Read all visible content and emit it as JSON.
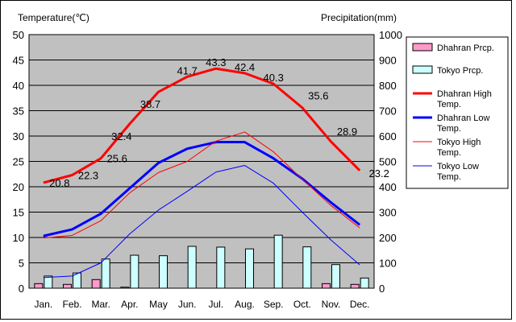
{
  "chart_data": {
    "type": "bar+line",
    "left_axis": {
      "title": "Temperature(℃)",
      "min": 0,
      "max": 50,
      "step": 5
    },
    "right_axis": {
      "title": "Precipitation(mm)",
      "min": 0,
      "max": 1000,
      "step": 100
    },
    "categories": [
      "Jan.",
      "Feb.",
      "Mar.",
      "Apr.",
      "May",
      "Jun.",
      "Jul.",
      "Aug.",
      "Sep.",
      "Oct.",
      "Nov.",
      "Dec."
    ],
    "grid": true,
    "legend_position": "right",
    "bar_series": [
      {
        "name": "Dhahran Prcp.",
        "color": "#ff99cc",
        "values": [
          18,
          15,
          34,
          4,
          0,
          0,
          0,
          0,
          0,
          0,
          18,
          15
        ]
      },
      {
        "name": "Tokyo Prcp.",
        "color": "#ccffff",
        "values": [
          48,
          60,
          115,
          130,
          128,
          165,
          162,
          155,
          209,
          163,
          93,
          40
        ]
      }
    ],
    "line_series": [
      {
        "name": "Dhahran High Temp.",
        "color": "#ff0000",
        "width": 3,
        "values": [
          20.8,
          22.3,
          25.6,
          32.4,
          38.7,
          41.7,
          43.3,
          42.4,
          40.3,
          35.6,
          28.9,
          23.2
        ],
        "labels": [
          "20.8",
          "22.3",
          "25.6",
          "32.4",
          "38.7",
          "41.7",
          "43.3",
          "42.4",
          "40.3",
          "35.6",
          "28.9",
          "23.2"
        ]
      },
      {
        "name": "Dhahran Low Temp.",
        "color": "#0000ff",
        "width": 3,
        "values": [
          10.3,
          11.6,
          14.7,
          19.7,
          24.7,
          27.5,
          28.8,
          28.8,
          25.6,
          21.6,
          16.9,
          12.5
        ]
      },
      {
        "name": "Tokyo High Temp.",
        "color": "#ff0000",
        "width": 1,
        "values": [
          9.9,
          10.4,
          13.3,
          18.8,
          22.8,
          25.0,
          29.0,
          30.8,
          26.9,
          21.5,
          16.3,
          11.9
        ]
      },
      {
        "name": "Tokyo Low Temp.",
        "color": "#0000ff",
        "width": 1,
        "values": [
          2.1,
          2.4,
          5.0,
          10.7,
          15.4,
          19.1,
          22.9,
          24.2,
          20.7,
          15.0,
          9.5,
          4.6
        ]
      }
    ]
  }
}
